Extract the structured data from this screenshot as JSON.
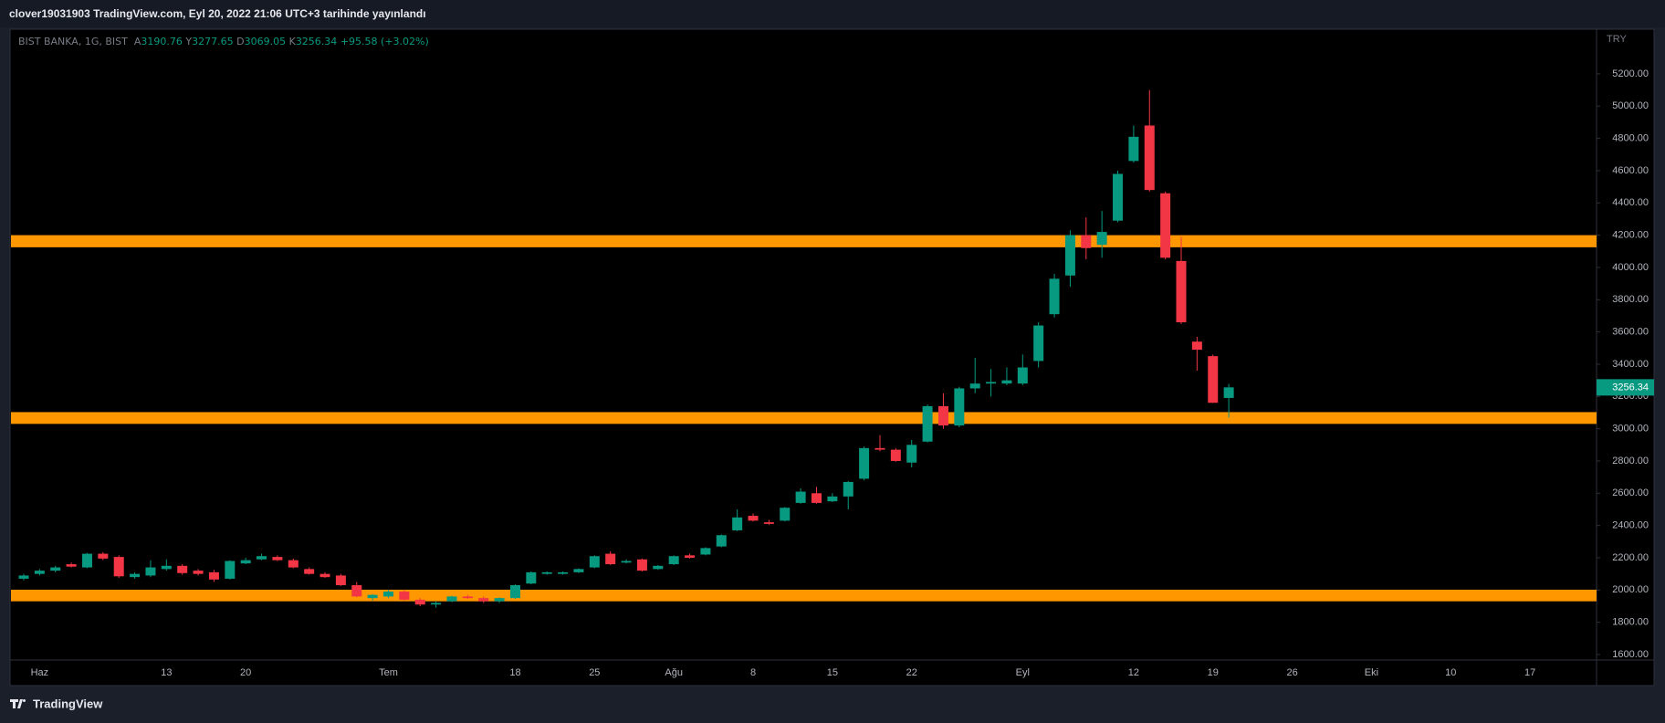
{
  "header": {
    "text": "clover19031903 TradingView.com, Eyl 20, 2022 21:06 UTC+3 tarihinde yayınlandı"
  },
  "footer": {
    "brand": "TradingView"
  },
  "chart_data": {
    "type": "candlestick",
    "legend": {
      "symbol": "BIST BANKA, 1G, BIST",
      "open_label": "A",
      "high_label": "Y",
      "low_label": "D",
      "close_label": "K",
      "change": "+95.58",
      "change_percent": "(+3.02%)"
    },
    "currency": "TRY",
    "categories": [
      null,
      "Haz",
      null,
      null,
      null,
      null,
      null,
      null,
      null,
      "13",
      null,
      null,
      null,
      null,
      "20",
      null,
      null,
      null,
      null,
      null,
      null,
      null,
      null,
      "Tem",
      null,
      null,
      null,
      null,
      null,
      null,
      null,
      "18",
      null,
      null,
      null,
      null,
      "25",
      null,
      null,
      null,
      null,
      "Ağu",
      null,
      null,
      null,
      null,
      "8",
      null,
      null,
      null,
      null,
      "15",
      null,
      null,
      null,
      null,
      "22",
      null,
      null,
      null,
      null,
      null,
      null,
      "Eyl",
      null,
      null,
      null,
      null,
      null,
      null,
      "12",
      null,
      null,
      null,
      null,
      "19",
      null,
      null,
      null,
      null,
      "26",
      null,
      null,
      null,
      null,
      "Eki",
      null,
      null,
      null,
      null,
      "10",
      null,
      null,
      null,
      null,
      "17",
      null,
      null,
      null,
      null
    ],
    "open": [
      2070,
      2100,
      2120,
      2160,
      2140,
      2225,
      2205,
      2080,
      2090,
      2130,
      2150,
      2120,
      2110,
      2070,
      2165,
      2190,
      2205,
      2185,
      2130,
      2100,
      2090,
      2030,
      1950,
      1960,
      1990,
      1940,
      1910,
      1930,
      1960,
      1950,
      1930,
      1950,
      2040,
      2100,
      2100,
      2110,
      2140,
      2225,
      2170,
      2190,
      2130,
      2160,
      2215,
      2220,
      2270,
      2370,
      2460,
      2420,
      2430,
      2540,
      2600,
      2550,
      2580,
      2690,
      2880,
      2870,
      2790,
      2920,
      3140,
      3020,
      3250,
      3280,
      3280,
      3280,
      3420,
      3710,
      3950,
      4200,
      4140,
      4290,
      4660,
      4880,
      4460,
      4040,
      3540,
      3450,
      3190.76,
      null,
      null,
      null,
      null,
      null,
      null,
      null,
      null,
      null,
      null,
      null,
      null,
      null,
      null,
      null,
      null,
      null,
      null,
      null,
      null,
      null,
      null,
      null
    ],
    "high": [
      2100,
      2130,
      2150,
      2170,
      2230,
      2235,
      2215,
      2110,
      2185,
      2190,
      2160,
      2130,
      2125,
      2185,
      2200,
      2225,
      2215,
      2195,
      2140,
      2110,
      2100,
      2050,
      1975,
      2000,
      2000,
      1950,
      1930,
      1965,
      1970,
      1960,
      1955,
      2035,
      2115,
      2115,
      2115,
      2135,
      2215,
      2240,
      2190,
      2195,
      2155,
      2215,
      2225,
      2265,
      2345,
      2500,
      2475,
      2435,
      2515,
      2630,
      2640,
      2600,
      2675,
      2890,
      2960,
      2880,
      2930,
      3150,
      3220,
      3260,
      3440,
      3370,
      3380,
      3460,
      3660,
      3960,
      4230,
      4310,
      4350,
      4600,
      4880,
      5100,
      4470,
      4190,
      3570,
      3460,
      3277.65,
      null,
      null,
      null,
      null,
      null,
      null,
      null,
      null,
      null,
      null,
      null,
      null,
      null,
      null,
      null,
      null,
      null,
      null,
      null,
      null,
      null,
      null,
      null
    ],
    "low": [
      2060,
      2090,
      2110,
      2140,
      2135,
      2185,
      2075,
      2070,
      2080,
      2120,
      2095,
      2090,
      2050,
      2065,
      2160,
      2185,
      2180,
      2135,
      2095,
      2075,
      2025,
      1955,
      1935,
      1950,
      1935,
      1900,
      1890,
      1925,
      1945,
      1920,
      1920,
      1945,
      2035,
      2095,
      2095,
      2105,
      2135,
      2155,
      2165,
      2115,
      2125,
      2155,
      2195,
      2215,
      2265,
      2365,
      2425,
      2405,
      2425,
      2535,
      2535,
      2545,
      2500,
      2680,
      2860,
      2795,
      2760,
      2915,
      3000,
      3010,
      3220,
      3200,
      3270,
      3270,
      3380,
      3690,
      3880,
      4050,
      4060,
      4280,
      4650,
      4470,
      4050,
      3650,
      3360,
      3160,
      3069.05,
      null,
      null,
      null,
      null,
      null,
      null,
      null,
      null,
      null,
      null,
      null,
      null,
      null,
      null,
      null,
      null,
      null,
      null,
      null,
      null,
      null,
      null,
      null
    ],
    "close": [
      2090,
      2120,
      2140,
      2145,
      2225,
      2195,
      2085,
      2100,
      2140,
      2150,
      2105,
      2100,
      2065,
      2180,
      2185,
      2210,
      2185,
      2140,
      2100,
      2080,
      2030,
      1960,
      1970,
      1990,
      1940,
      1910,
      1920,
      1960,
      1950,
      1930,
      1950,
      2030,
      2110,
      2110,
      2110,
      2130,
      2210,
      2160,
      2180,
      2120,
      2150,
      2210,
      2200,
      2260,
      2340,
      2450,
      2430,
      2410,
      2510,
      2610,
      2540,
      2580,
      2670,
      2880,
      2870,
      2800,
      2900,
      3140,
      3020,
      3250,
      3280,
      3290,
      3300,
      3380,
      3640,
      3930,
      4200,
      4120,
      4220,
      4580,
      4810,
      4480,
      4060,
      3660,
      3490,
      3160.76,
      3256.34,
      null,
      null,
      null,
      null,
      null,
      null,
      null,
      null,
      null,
      null,
      null,
      null,
      null,
      null,
      null,
      null,
      null,
      null,
      null,
      null,
      null,
      null,
      null
    ],
    "up_color": "#089981",
    "down_color": "#f23645",
    "zones": [
      {
        "low": 4125,
        "high": 4200
      },
      {
        "low": 3030,
        "high": 3103
      },
      {
        "low": 1930,
        "high": 2002
      }
    ],
    "zone_color": "#ff9800",
    "ylim": [
      1566,
      5477
    ],
    "yticks": [
      {
        "value": 1600,
        "label": "1600.00"
      },
      {
        "value": 1800,
        "label": "1800.00"
      },
      {
        "value": 2000,
        "label": "2000.00"
      },
      {
        "value": 2200,
        "label": "2200.00"
      },
      {
        "value": 2400,
        "label": "2400.00"
      },
      {
        "value": 2600,
        "label": "2600.00"
      },
      {
        "value": 2800,
        "label": "2800.00"
      },
      {
        "value": 3000,
        "label": "3000.00"
      },
      {
        "value": 3200,
        "label": "3200.00"
      },
      {
        "value": 3400,
        "label": "3400.00"
      },
      {
        "value": 3600,
        "label": "3600.00"
      },
      {
        "value": 3800,
        "label": "3800.00"
      },
      {
        "value": 4000,
        "label": "4000.00"
      },
      {
        "value": 4200,
        "label": "4200.00"
      },
      {
        "value": 4400,
        "label": "4400.00"
      },
      {
        "value": 4600,
        "label": "4600.00"
      },
      {
        "value": 4800,
        "label": "4800.00"
      },
      {
        "value": 5000,
        "label": "5000.00"
      },
      {
        "value": 5200,
        "label": "5200.00"
      }
    ]
  }
}
